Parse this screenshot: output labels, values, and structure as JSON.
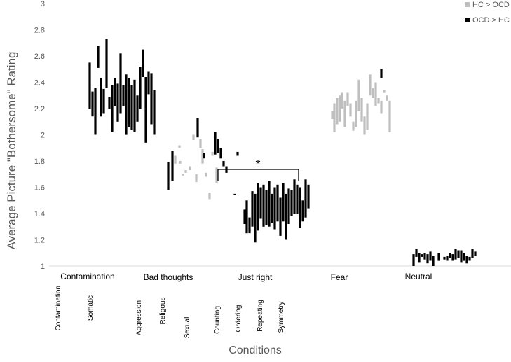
{
  "chart_data": {
    "type": "bar",
    "ylabel": "Average Picture \"Bothersome\" Rating",
    "xlabel": "Conditions",
    "ylim": [
      1,
      3
    ],
    "y_ticks": [
      "1",
      "1.2",
      "1.4",
      "1.6",
      "1.8",
      "2",
      "2.2",
      "2.4",
      "2.6",
      "2.8",
      "3"
    ],
    "grid": false,
    "legend_position": "top-right",
    "groups": [
      "Contamination",
      "Bad thoughts",
      "Just right",
      "Fear",
      "Neutral"
    ],
    "subgroups": [
      "Contamination",
      "Somatic",
      "Aggression",
      "Religous",
      "Sexual",
      "Counting",
      "Ordering",
      "Repeating",
      "Symmetry"
    ],
    "annotation": "*",
    "colors": {
      "HC > OCD": "#bfbfbf",
      "OCD > HC": "#000000"
    },
    "series": [
      {
        "name": "HC > OCD",
        "bars": [
          {
            "x": 1.8,
            "low": 1.78,
            "high": 1.84
          },
          {
            "x": 1.86,
            "low": 1.9,
            "high": 1.92
          },
          {
            "x": 1.87,
            "low": 1.78,
            "high": 1.8
          },
          {
            "x": 1.91,
            "low": 1.69,
            "high": 1.7
          },
          {
            "x": 1.95,
            "low": 1.71,
            "high": 1.73
          },
          {
            "x": 2.01,
            "low": 1.73,
            "high": 1.76
          },
          {
            "x": 2.06,
            "low": 1.96,
            "high": 2.0
          },
          {
            "x": 2.1,
            "low": 1.64,
            "high": 1.7
          },
          {
            "x": 2.16,
            "low": 1.9,
            "high": 1.97
          },
          {
            "x": 2.19,
            "low": 1.78,
            "high": 1.89
          },
          {
            "x": 2.24,
            "low": 1.68,
            "high": 1.71
          },
          {
            "x": 2.29,
            "low": 1.51,
            "high": 1.56
          },
          {
            "x": 2.33,
            "low": 1.84,
            "high": 1.87
          },
          {
            "x": 2.39,
            "low": 1.63,
            "high": 1.75
          },
          {
            "x": 4.04,
            "low": 2.12,
            "high": 2.18
          },
          {
            "x": 4.07,
            "low": 2.02,
            "high": 2.24
          },
          {
            "x": 4.11,
            "low": 2.08,
            "high": 2.28
          },
          {
            "x": 4.15,
            "low": 2.1,
            "high": 2.3
          },
          {
            "x": 4.18,
            "low": 2.2,
            "high": 2.32
          },
          {
            "x": 4.22,
            "low": 2.06,
            "high": 2.26
          },
          {
            "x": 4.26,
            "low": 2.22,
            "high": 2.32
          },
          {
            "x": 4.3,
            "low": 2.14,
            "high": 2.24
          },
          {
            "x": 4.34,
            "low": 2.03,
            "high": 2.1
          },
          {
            "x": 4.38,
            "low": 2.06,
            "high": 2.26
          },
          {
            "x": 4.42,
            "low": 2.18,
            "high": 2.42
          },
          {
            "x": 4.46,
            "low": 2.1,
            "high": 2.28
          },
          {
            "x": 4.5,
            "low": 2.0,
            "high": 2.14
          },
          {
            "x": 4.54,
            "low": 2.04,
            "high": 2.24
          },
          {
            "x": 4.58,
            "low": 2.3,
            "high": 2.46
          },
          {
            "x": 4.62,
            "low": 2.28,
            "high": 2.36
          },
          {
            "x": 4.66,
            "low": 2.22,
            "high": 2.4
          },
          {
            "x": 4.7,
            "low": 2.24,
            "high": 2.28
          },
          {
            "x": 4.74,
            "low": 2.16,
            "high": 2.26
          },
          {
            "x": 4.78,
            "low": 2.32,
            "high": 2.34
          },
          {
            "x": 4.82,
            "low": 2.26,
            "high": 2.3
          },
          {
            "x": 4.86,
            "low": 2.02,
            "high": 2.26
          }
        ]
      },
      {
        "name": "OCD > HC",
        "bars": [
          {
            "x": 0.58,
            "low": 2.2,
            "high": 2.55
          },
          {
            "x": 0.62,
            "low": 2.14,
            "high": 2.33
          },
          {
            "x": 0.66,
            "low": 2.0,
            "high": 2.36
          },
          {
            "x": 0.7,
            "low": 2.51,
            "high": 2.68
          },
          {
            "x": 0.74,
            "low": 2.14,
            "high": 2.43
          },
          {
            "x": 0.78,
            "low": 2.16,
            "high": 2.35
          },
          {
            "x": 0.82,
            "low": 2.36,
            "high": 2.73
          },
          {
            "x": 0.86,
            "low": 2.2,
            "high": 2.29
          },
          {
            "x": 0.9,
            "low": 2.02,
            "high": 2.38
          },
          {
            "x": 0.94,
            "low": 2.22,
            "high": 2.43
          },
          {
            "x": 0.98,
            "low": 2.1,
            "high": 2.39
          },
          {
            "x": 1.02,
            "low": 2.16,
            "high": 2.62
          },
          {
            "x": 1.06,
            "low": 2.22,
            "high": 2.38
          },
          {
            "x": 1.1,
            "low": 2.0,
            "high": 2.46
          },
          {
            "x": 1.14,
            "low": 2.06,
            "high": 2.43
          },
          {
            "x": 1.18,
            "low": 2.04,
            "high": 2.38
          },
          {
            "x": 1.22,
            "low": 2.02,
            "high": 2.42
          },
          {
            "x": 1.26,
            "low": 2.1,
            "high": 2.3
          },
          {
            "x": 1.3,
            "low": 2.2,
            "high": 2.52
          },
          {
            "x": 1.34,
            "low": 2.44,
            "high": 2.65
          },
          {
            "x": 1.38,
            "low": 1.94,
            "high": 2.44
          },
          {
            "x": 1.42,
            "low": 2.31,
            "high": 2.48
          },
          {
            "x": 1.46,
            "low": 2.08,
            "high": 2.47
          },
          {
            "x": 1.5,
            "low": 2.0,
            "high": 2.34
          },
          {
            "x": 1.7,
            "low": 1.58,
            "high": 1.79
          },
          {
            "x": 1.76,
            "low": 1.65,
            "high": 1.88
          },
          {
            "x": 2.12,
            "low": 1.98,
            "high": 2.13
          },
          {
            "x": 2.21,
            "low": 1.82,
            "high": 1.86
          },
          {
            "x": 2.37,
            "low": 1.85,
            "high": 2.02
          },
          {
            "x": 2.41,
            "low": 1.86,
            "high": 1.97
          },
          {
            "x": 2.45,
            "low": 1.82,
            "high": 1.9
          },
          {
            "x": 2.49,
            "low": 1.76,
            "high": 1.8
          },
          {
            "x": 2.53,
            "low": 1.71,
            "high": 1.76
          },
          {
            "x": 2.69,
            "low": 1.84,
            "high": 1.87
          },
          {
            "x": 2.65,
            "low": 1.54,
            "high": 1.55
          },
          {
            "x": 2.79,
            "low": 1.32,
            "high": 1.43
          },
          {
            "x": 2.82,
            "low": 1.25,
            "high": 1.5
          },
          {
            "x": 2.86,
            "low": 1.25,
            "high": 1.37
          },
          {
            "x": 2.9,
            "low": 1.3,
            "high": 1.57
          },
          {
            "x": 2.94,
            "low": 1.18,
            "high": 1.55
          },
          {
            "x": 2.98,
            "low": 1.27,
            "high": 1.63
          },
          {
            "x": 3.02,
            "low": 1.36,
            "high": 1.6
          },
          {
            "x": 3.06,
            "low": 1.3,
            "high": 1.62
          },
          {
            "x": 3.1,
            "low": 1.31,
            "high": 1.58
          },
          {
            "x": 3.14,
            "low": 1.3,
            "high": 1.65
          },
          {
            "x": 3.18,
            "low": 1.33,
            "high": 1.55
          },
          {
            "x": 3.22,
            "low": 1.28,
            "high": 1.6
          },
          {
            "x": 3.26,
            "low": 1.34,
            "high": 1.62
          },
          {
            "x": 3.3,
            "low": 1.23,
            "high": 1.52
          },
          {
            "x": 3.34,
            "low": 1.34,
            "high": 1.63
          },
          {
            "x": 3.38,
            "low": 1.2,
            "high": 1.55
          },
          {
            "x": 3.42,
            "low": 1.32,
            "high": 1.59
          },
          {
            "x": 3.46,
            "low": 1.38,
            "high": 1.58
          },
          {
            "x": 3.5,
            "low": 1.4,
            "high": 1.66
          },
          {
            "x": 3.54,
            "low": 1.4,
            "high": 1.62
          },
          {
            "x": 3.58,
            "low": 1.29,
            "high": 1.6
          },
          {
            "x": 3.62,
            "low": 1.34,
            "high": 1.5
          },
          {
            "x": 3.66,
            "low": 1.37,
            "high": 1.66
          },
          {
            "x": 3.7,
            "low": 1.44,
            "high": 1.62
          },
          {
            "x": 4.74,
            "low": 2.43,
            "high": 2.5
          },
          {
            "x": 5.2,
            "low": 1.0,
            "high": 1.09
          },
          {
            "x": 5.24,
            "low": 1.07,
            "high": 1.13
          },
          {
            "x": 5.28,
            "low": 1.03,
            "high": 1.1
          },
          {
            "x": 5.32,
            "low": 1.07,
            "high": 1.09
          },
          {
            "x": 5.36,
            "low": 1.05,
            "high": 1.1
          },
          {
            "x": 5.4,
            "low": 1.02,
            "high": 1.09
          },
          {
            "x": 5.44,
            "low": 1.04,
            "high": 1.11
          },
          {
            "x": 5.48,
            "low": 1.0,
            "high": 1.08
          },
          {
            "x": 5.56,
            "low": 1.04,
            "high": 1.1
          },
          {
            "x": 5.64,
            "low": 1.05,
            "high": 1.07
          },
          {
            "x": 5.68,
            "low": 1.04,
            "high": 1.08
          },
          {
            "x": 5.72,
            "low": 1.06,
            "high": 1.1
          },
          {
            "x": 5.76,
            "low": 1.04,
            "high": 1.09
          },
          {
            "x": 5.8,
            "low": 1.05,
            "high": 1.13
          },
          {
            "x": 5.84,
            "low": 1.06,
            "high": 1.12
          },
          {
            "x": 5.88,
            "low": 1.03,
            "high": 1.12
          },
          {
            "x": 5.92,
            "low": 1.04,
            "high": 1.1
          },
          {
            "x": 5.96,
            "low": 1.02,
            "high": 1.08
          },
          {
            "x": 6.0,
            "low": 1.04,
            "high": 1.07
          },
          {
            "x": 6.04,
            "low": 1.06,
            "high": 1.13
          },
          {
            "x": 6.08,
            "low": 1.08,
            "high": 1.11
          }
        ]
      }
    ]
  }
}
